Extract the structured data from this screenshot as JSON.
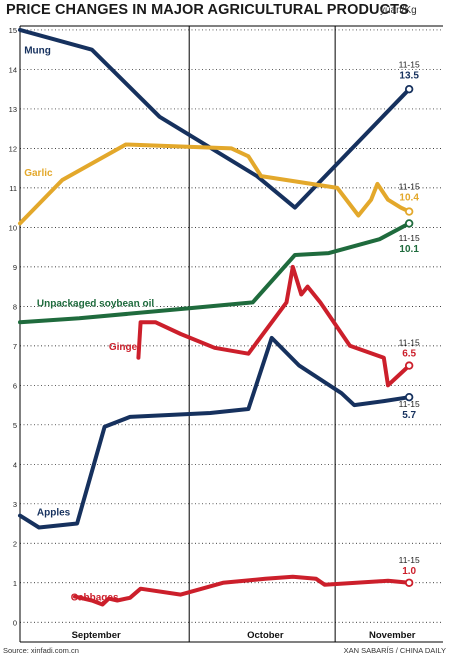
{
  "header": {
    "title": "PRICE CHANGES IN MAJOR AGRICULTURAL PRODUCTS",
    "unit": "yuan/Kg"
  },
  "footer": {
    "source": "Source: xinfadi.com.cn",
    "credit": "XAN SABARÍS / CHINA DAILY"
  },
  "colors": {
    "navy": "#16315e",
    "gold": "#e3a82b",
    "green": "#1f6b3d",
    "red": "#cc1f2b",
    "grid": "#000000",
    "background": "#ffffff"
  },
  "chart_data": {
    "type": "line",
    "title": "PRICE CHANGES IN MAJOR AGRICULTURAL PRODUCTS",
    "ylabel": "yuan/Kg",
    "xlabel": "",
    "x_range": [
      0,
      100
    ],
    "ylim": [
      -0.5,
      15.1
    ],
    "ytick_values": [
      0,
      1,
      2,
      3,
      4,
      5,
      6,
      7,
      8,
      9,
      10,
      11,
      12,
      13,
      14,
      15
    ],
    "ytick_labels": [
      "0",
      "1",
      "2",
      "3",
      "4",
      "5",
      "6",
      "7",
      "8",
      "9",
      "10",
      "11",
      "12",
      "13",
      "14",
      "15"
    ],
    "month_labels": [
      {
        "label": "September",
        "x": 18
      },
      {
        "label": "October",
        "x": 58
      },
      {
        "label": "November",
        "x": 88
      }
    ],
    "month_dividers": [
      40,
      74.5
    ],
    "grid": true,
    "end_label_date": "11-15",
    "series": [
      {
        "name": "Mung",
        "color": "#16315e",
        "name_label_pos": [
          1,
          14.4
        ],
        "end_label": "13.5",
        "end_label_y": 13.8,
        "points": [
          [
            0,
            15.0
          ],
          [
            17,
            14.5
          ],
          [
            33,
            12.8
          ],
          [
            56,
            11.3
          ],
          [
            65,
            10.5
          ],
          [
            92,
            13.5
          ]
        ]
      },
      {
        "name": "Garlic",
        "color": "#e3a82b",
        "name_label_pos": [
          1,
          11.3
        ],
        "end_label": "10.4",
        "end_label_y": 10.7,
        "points": [
          [
            0,
            10.1
          ],
          [
            10,
            11.2
          ],
          [
            25,
            12.1
          ],
          [
            50,
            12.0
          ],
          [
            54,
            11.8
          ],
          [
            57,
            11.3
          ],
          [
            75,
            11.0
          ],
          [
            80,
            10.3
          ],
          [
            83,
            10.7
          ],
          [
            84.5,
            11.1
          ],
          [
            87,
            10.7
          ],
          [
            90,
            10.5
          ],
          [
            92,
            10.4
          ]
        ]
      },
      {
        "name": "Unpackaged soybean oil",
        "color": "#1f6b3d",
        "name_label_pos": [
          4,
          8.0
        ],
        "end_label": "10.1",
        "end_label_y": 9.4,
        "points": [
          [
            0,
            7.6
          ],
          [
            14,
            7.7
          ],
          [
            40,
            7.95
          ],
          [
            55,
            8.1
          ],
          [
            65,
            9.3
          ],
          [
            73,
            9.35
          ],
          [
            85,
            9.7
          ],
          [
            92,
            10.1
          ]
        ]
      },
      {
        "name": "Ginger",
        "color": "#cc1f2b",
        "name_label_pos": [
          21,
          6.9
        ],
        "end_label": "6.5",
        "end_label_y": 6.75,
        "points": [
          [
            28,
            6.7
          ],
          [
            28.5,
            7.6
          ],
          [
            32,
            7.6
          ],
          [
            38,
            7.3
          ],
          [
            46,
            6.95
          ],
          [
            54,
            6.8
          ],
          [
            63,
            8.1
          ],
          [
            64.5,
            9.0
          ],
          [
            66.5,
            8.3
          ],
          [
            68,
            8.5
          ],
          [
            71,
            8.1
          ],
          [
            78,
            7.0
          ],
          [
            86,
            6.7
          ],
          [
            87,
            6.0
          ],
          [
            89,
            6.2
          ],
          [
            92,
            6.5
          ]
        ]
      },
      {
        "name": "Apples",
        "color": "#16315e",
        "name_label_pos": [
          4,
          2.7
        ],
        "end_label": "5.7",
        "end_label_y": 5.2,
        "points": [
          [
            0,
            2.7
          ],
          [
            4.5,
            2.4
          ],
          [
            13.5,
            2.5
          ],
          [
            20,
            4.95
          ],
          [
            26,
            5.2
          ],
          [
            45,
            5.3
          ],
          [
            54,
            5.4
          ],
          [
            59.5,
            7.2
          ],
          [
            66,
            6.5
          ],
          [
            76,
            5.8
          ],
          [
            79,
            5.5
          ],
          [
            86,
            5.6
          ],
          [
            92,
            5.7
          ]
        ]
      },
      {
        "name": "Cabbages",
        "color": "#cc1f2b",
        "name_label_pos": [
          12,
          0.55
        ],
        "end_label": "1.0",
        "end_label_y": 1.25,
        "points": [
          [
            13,
            0.65
          ],
          [
            17,
            0.55
          ],
          [
            19.5,
            0.45
          ],
          [
            21,
            0.6
          ],
          [
            23,
            0.55
          ],
          [
            26,
            0.62
          ],
          [
            28.5,
            0.85
          ],
          [
            38,
            0.7
          ],
          [
            43,
            0.85
          ],
          [
            48,
            1.0
          ],
          [
            58,
            1.1
          ],
          [
            64.5,
            1.15
          ],
          [
            70,
            1.1
          ],
          [
            72,
            0.95
          ],
          [
            87,
            1.05
          ],
          [
            92,
            1.0
          ]
        ]
      }
    ]
  }
}
